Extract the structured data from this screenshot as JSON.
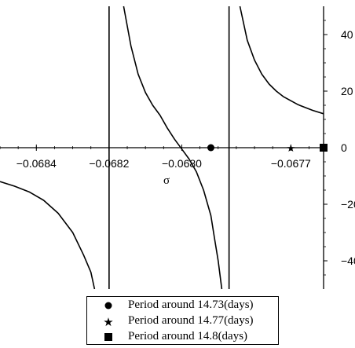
{
  "chart_data": {
    "type": "line",
    "title": "",
    "xlabel": "σ",
    "ylabel": "",
    "xlim": [
      -0.0685,
      -0.06761
    ],
    "ylim": [
      -50,
      50
    ],
    "x_ticks": [
      -0.0684,
      -0.0682,
      -0.068,
      -0.0677
    ],
    "x_tick_labels": [
      "−0.0684",
      "−0.0682",
      "−0.0680",
      "−0.0677"
    ],
    "y_ticks": [
      -40,
      -20,
      0,
      20,
      40
    ],
    "y_tick_labels": [
      "−40",
      "−20",
      "0",
      "20",
      "40"
    ],
    "grid": false,
    "legend_position": "bottom-center",
    "vertical_asymptotes": [
      -0.0682,
      -0.06787
    ],
    "series": [
      {
        "segment": "left branch (y < 0)",
        "points": [
          [
            -0.0685,
            -12
          ],
          [
            -0.06846,
            -13.6
          ],
          [
            -0.06842,
            -15.6
          ],
          [
            -0.06838,
            -18.6
          ],
          [
            -0.06834,
            -23.2
          ],
          [
            -0.0683,
            -30
          ],
          [
            -0.06827,
            -38
          ],
          [
            -0.06825,
            -44
          ],
          [
            -0.06824,
            -50
          ]
        ]
      },
      {
        "segment": "middle branch",
        "points": [
          [
            -0.06816,
            50
          ],
          [
            -0.06814,
            36
          ],
          [
            -0.06812,
            26
          ],
          [
            -0.0681,
            19.5
          ],
          [
            -0.06808,
            15
          ],
          [
            -0.06806,
            11.5
          ],
          [
            -0.06804,
            7
          ],
          [
            -0.06802,
            3
          ],
          [
            -0.068,
            -0.5
          ],
          [
            -0.06798,
            -4
          ],
          [
            -0.06796,
            -8.5
          ],
          [
            -0.06794,
            -15
          ],
          [
            -0.06792,
            -24
          ],
          [
            -0.06791,
            -32
          ],
          [
            -0.0679,
            -40
          ],
          [
            -0.06789,
            -50
          ]
        ]
      },
      {
        "segment": "right branch (y > 0)",
        "points": [
          [
            -0.06784,
            50
          ],
          [
            -0.06782,
            38
          ],
          [
            -0.0678,
            31
          ],
          [
            -0.06778,
            26
          ],
          [
            -0.06776,
            22.5
          ],
          [
            -0.06774,
            20
          ],
          [
            -0.06772,
            18
          ],
          [
            -0.06768,
            15.2
          ],
          [
            -0.06764,
            13.2
          ],
          [
            -0.06761,
            12
          ]
        ]
      }
    ],
    "markers": [
      {
        "label": "Period around 14.73(days)",
        "shape": "circle",
        "x": -0.06792,
        "y": 0
      },
      {
        "label": "Period around 14.77(days)",
        "shape": "star",
        "x": -0.0677,
        "y": 0
      },
      {
        "label": "Period around 14.8(days)",
        "shape": "square",
        "x": -0.06761,
        "y": 0
      }
    ]
  },
  "colors": {
    "line": "#000000",
    "background": "#ffffff"
  }
}
